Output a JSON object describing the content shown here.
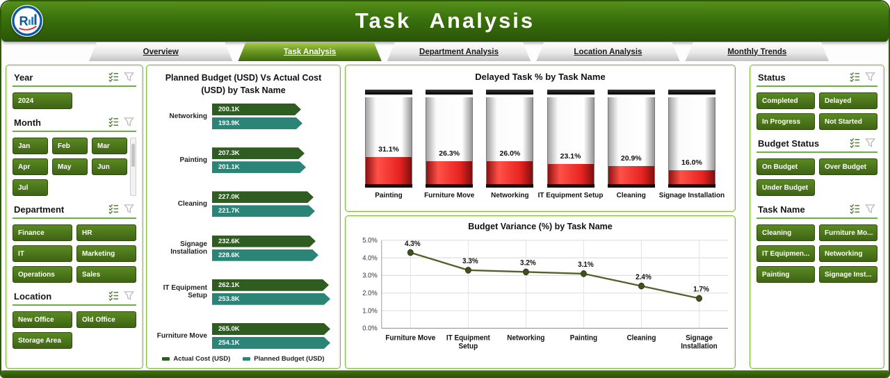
{
  "header": {
    "title": "Task Analysis"
  },
  "icons": {
    "multiselect": "checklist-check-icon",
    "clear_filter": "funnel-icon",
    "logo": "company-logo"
  },
  "tabs": [
    {
      "label": "Overview",
      "active": false
    },
    {
      "label": "Task Analysis",
      "active": true
    },
    {
      "label": "Department Analysis",
      "active": false
    },
    {
      "label": "Location Analysis",
      "active": false
    },
    {
      "label": "Monthly Trends",
      "active": false
    }
  ],
  "slicers_left": [
    {
      "title": "Year",
      "columns": 2,
      "items": [
        "2024"
      ]
    },
    {
      "title": "Month",
      "columns": 3,
      "scrollbar": true,
      "items": [
        "Jan",
        "Feb",
        "Mar",
        "Apr",
        "May",
        "Jun",
        "Jul"
      ]
    },
    {
      "title": "Department",
      "columns": 2,
      "items": [
        "Finance",
        "HR",
        "IT",
        "Marketing",
        "Operations",
        "Sales"
      ]
    },
    {
      "title": "Location",
      "columns": 2,
      "items": [
        "New Office",
        "Old Office",
        "Storage Area"
      ]
    }
  ],
  "slicers_right": [
    {
      "title": "Status",
      "columns": 2,
      "items": [
        "Completed",
        "Delayed",
        "In Progress",
        "Not Started"
      ]
    },
    {
      "title": "Budget Status",
      "columns": 2,
      "items": [
        "On Budget",
        "Over Budget",
        "Under Budget"
      ]
    },
    {
      "title": "Task Name",
      "columns": 2,
      "items": [
        "Cleaning",
        "Furniture Mo...",
        "IT Equipmen...",
        "Networking",
        "Painting",
        "Signage Inst..."
      ]
    }
  ],
  "chart_data": [
    {
      "type": "bar",
      "orientation": "horizontal",
      "title": "Planned Budget (USD) Vs Actual Cost (USD) by Task Name",
      "categories": [
        "Networking",
        "Painting",
        "Cleaning",
        "Signage Installation",
        "IT Equipment Setup",
        "Furniture Move"
      ],
      "series": [
        {
          "name": "Actual Cost (USD)",
          "color": "#2f5c21",
          "values": [
            200.1,
            207.3,
            227.0,
            232.6,
            262.1,
            265.0
          ],
          "labels": [
            "200.1K",
            "207.3K",
            "227.0K",
            "232.6K",
            "262.1K",
            "265.0K"
          ]
        },
        {
          "name": "Planned Budget (USD)",
          "color": "#2b8577",
          "values": [
            193.9,
            201.1,
            221.7,
            228.6,
            253.8,
            254.1
          ],
          "labels": [
            "193.9K",
            "201.1K",
            "221.7K",
            "228.6K",
            "253.8K",
            "254.1K"
          ]
        }
      ]
    },
    {
      "type": "bar",
      "subtype": "thermometer",
      "title": "Delayed Task % by Task Name",
      "categories": [
        "Painting",
        "Furniture Move",
        "Networking",
        "IT Equipment Setup",
        "Cleaning",
        "Signage Installation"
      ],
      "values": [
        31.1,
        26.3,
        26.0,
        23.1,
        20.9,
        16.0
      ],
      "labels": [
        "31.1%",
        "26.3%",
        "26.0%",
        "23.1%",
        "20.9%",
        "16.0%"
      ],
      "fill_color": "#e02320"
    },
    {
      "type": "line",
      "title": "Budget Variance (%) by Task Name",
      "categories": [
        "Furniture Move",
        "IT Equipment\nSetup",
        "Networking",
        "Painting",
        "Cleaning",
        "Signage\nInstallation"
      ],
      "values": [
        4.3,
        3.3,
        3.2,
        3.1,
        2.4,
        1.7
      ],
      "labels": [
        "4.3%",
        "3.3%",
        "3.2%",
        "3.1%",
        "2.4%",
        "1.7%"
      ],
      "ylim": [
        0,
        5
      ],
      "yticks": [
        "0.0%",
        "1.0%",
        "2.0%",
        "3.0%",
        "4.0%",
        "5.0%"
      ],
      "line_color": "#4f6228",
      "grid": true
    }
  ]
}
